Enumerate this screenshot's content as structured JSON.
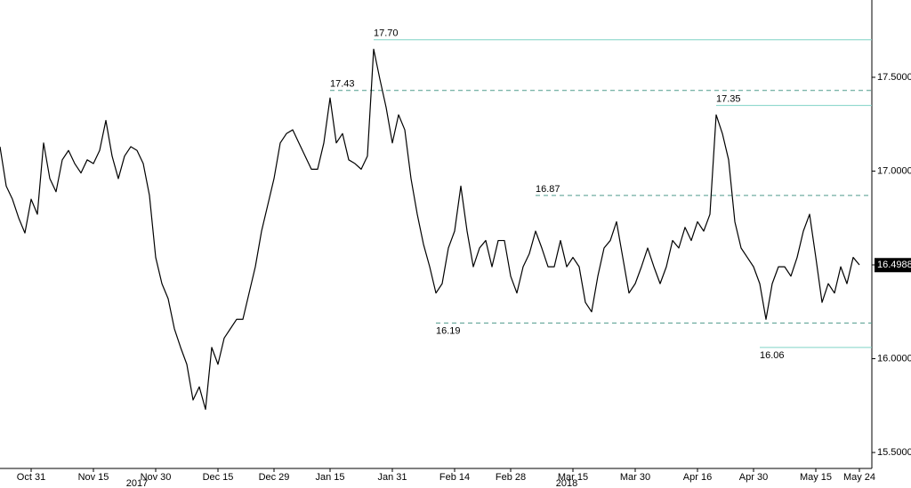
{
  "chart_data": {
    "type": "line",
    "categories": [
      null,
      null,
      null,
      null,
      null,
      "Oct 31",
      null,
      null,
      null,
      null,
      null,
      null,
      null,
      null,
      null,
      "Nov 15",
      null,
      null,
      null,
      null,
      null,
      null,
      null,
      null,
      null,
      "Nov 30",
      null,
      null,
      null,
      null,
      null,
      null,
      null,
      null,
      null,
      "Dec 15",
      null,
      null,
      null,
      null,
      null,
      null,
      null,
      null,
      "Dec 29",
      null,
      null,
      null,
      null,
      null,
      null,
      null,
      null,
      "Jan 15",
      null,
      null,
      null,
      null,
      null,
      null,
      null,
      null,
      null,
      "Jan 31",
      null,
      null,
      null,
      null,
      null,
      null,
      null,
      null,
      null,
      "Feb 14",
      null,
      null,
      null,
      null,
      null,
      null,
      null,
      null,
      "Feb 28",
      null,
      null,
      null,
      null,
      null,
      null,
      null,
      null,
      null,
      "Mar 15",
      null,
      null,
      null,
      null,
      null,
      null,
      null,
      null,
      null,
      "Mar 30",
      null,
      null,
      null,
      null,
      null,
      null,
      null,
      null,
      null,
      "Apr 16",
      null,
      null,
      null,
      null,
      null,
      null,
      null,
      null,
      "Apr 30",
      null,
      null,
      null,
      null,
      null,
      null,
      null,
      null,
      null,
      "May 15",
      null,
      null,
      null,
      null,
      null,
      null,
      "May 24"
    ],
    "category_years": [
      null,
      null,
      null,
      null,
      null,
      null,
      null,
      null,
      null,
      null,
      null,
      null,
      null,
      null,
      null,
      null,
      null,
      null,
      null,
      null,
      null,
      null,
      "2017",
      null,
      null,
      null,
      null,
      null,
      null,
      null,
      null,
      null,
      null,
      null,
      null,
      null,
      null,
      null,
      null,
      null,
      null,
      null,
      null,
      null,
      null,
      null,
      null,
      null,
      null,
      null,
      null,
      null,
      null,
      null,
      null,
      null,
      null,
      null,
      null,
      null,
      null,
      null,
      null,
      null,
      null,
      null,
      null,
      null,
      null,
      null,
      null,
      null,
      null,
      null,
      null,
      null,
      null,
      null,
      null,
      null,
      null,
      null,
      null,
      null,
      null,
      null,
      null,
      null,
      null,
      null,
      null,
      "2018",
      null,
      null,
      null,
      null,
      null,
      null,
      null,
      null,
      null,
      null,
      null,
      null,
      null,
      null,
      null,
      null,
      null,
      null,
      null,
      null,
      null,
      null,
      null,
      null,
      null,
      null,
      null,
      null,
      null,
      null,
      null,
      null,
      null,
      null,
      null,
      null,
      null,
      null,
      null,
      null,
      null,
      null,
      null,
      null,
      null,
      null,
      null,
      null,
      null,
      null
    ],
    "series": [
      {
        "color": "#000000",
        "values": [
          17.13,
          16.92,
          16.85,
          16.75,
          16.67,
          16.85,
          16.77,
          17.15,
          16.96,
          16.89,
          17.06,
          17.11,
          17.04,
          16.99,
          17.06,
          17.04,
          17.11,
          17.27,
          17.08,
          16.96,
          17.08,
          17.13,
          17.11,
          17.04,
          16.87,
          16.54,
          16.4,
          16.32,
          16.16,
          16.06,
          15.97,
          15.78,
          15.85,
          15.73,
          16.06,
          15.97,
          16.11,
          16.16,
          16.21,
          16.21,
          16.35,
          16.49,
          16.68,
          16.82,
          16.96,
          17.15,
          17.2,
          17.22,
          17.15,
          17.08,
          17.01,
          17.01,
          17.15,
          17.39,
          17.15,
          17.2,
          17.06,
          17.04,
          17.01,
          17.08,
          17.65,
          17.49,
          17.34,
          17.15,
          17.3,
          17.22,
          16.96,
          16.77,
          16.61,
          16.49,
          16.35,
          16.4,
          16.59,
          16.68,
          16.92,
          16.68,
          16.49,
          16.59,
          16.63,
          16.49,
          16.63,
          16.63,
          16.44,
          16.35,
          16.49,
          16.56,
          16.68,
          16.59,
          16.49,
          16.49,
          16.63,
          16.49,
          16.54,
          16.49,
          16.3,
          16.25,
          16.44,
          16.59,
          16.63,
          16.73,
          16.54,
          16.35,
          16.4,
          16.49,
          16.59,
          16.49,
          16.4,
          16.49,
          16.63,
          16.59,
          16.7,
          16.63,
          16.73,
          16.68,
          16.77,
          17.3,
          17.2,
          17.06,
          16.73,
          16.59,
          16.54,
          16.49,
          16.4,
          16.21,
          16.4,
          16.49,
          16.49,
          16.44,
          16.54,
          16.68,
          16.77,
          16.54,
          16.3,
          16.4,
          16.35,
          16.49,
          16.4,
          16.54,
          16.5
        ]
      }
    ],
    "ylim": [
      15.415,
      17.912
    ],
    "yticks": [
      {
        "value": 15.5,
        "label": "15.5000"
      },
      {
        "value": 16,
        "label": "16.0000"
      },
      {
        "value": 16.5,
        "label": "16.5000"
      },
      {
        "value": 17,
        "label": "17.0000"
      },
      {
        "value": 17.5,
        "label": "17.5000"
      }
    ],
    "last_value": 16.4988,
    "annotations": [
      {
        "value": 17.7,
        "label": "17.70",
        "style": "solid",
        "x_index": 60,
        "side": "above"
      },
      {
        "value": 17.43,
        "label": "17.43",
        "style": "dashed",
        "x_index": 53,
        "side": "above"
      },
      {
        "value": 17.35,
        "label": "17.35",
        "style": "solid",
        "x_index": 115,
        "side": "above"
      },
      {
        "value": 16.87,
        "label": "16.87",
        "style": "dashed",
        "x_index": 86,
        "side": "above"
      },
      {
        "value": 16.19,
        "label": "16.19",
        "style": "dashed",
        "x_index": 70,
        "side": "below"
      },
      {
        "value": 16.06,
        "label": "16.06",
        "style": "solid",
        "x_index": 122,
        "side": "below"
      }
    ]
  }
}
